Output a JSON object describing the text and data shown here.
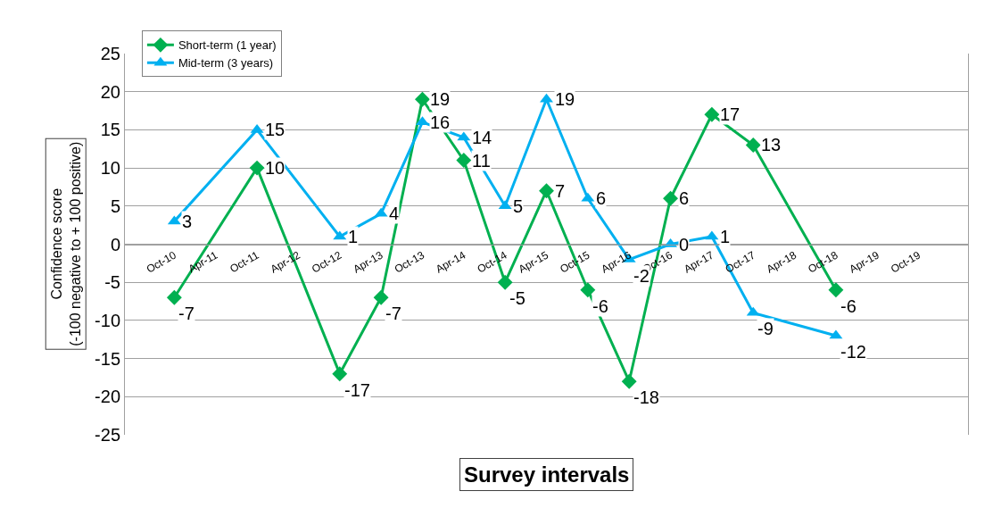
{
  "chart_data": {
    "type": "line",
    "categories": [
      "Oct-10",
      "Apr-11",
      "Oct-11",
      "Apr-12",
      "Oct-12",
      "Apr-13",
      "Oct-13",
      "Apr-14",
      "Oct-14",
      "Apr-15",
      "Oct-15",
      "Apr-16",
      "Oct-16",
      "Apr-17",
      "Oct-17",
      "Apr-18",
      "Oct-18",
      "Apr-19",
      "Oct-19"
    ],
    "series": [
      {
        "name": "Short-term (1 year)",
        "color": "#00b050",
        "marker": "diamond",
        "values": [
          -7,
          null,
          10,
          null,
          -17,
          -7,
          19,
          11,
          -5,
          7,
          -6,
          -18,
          6,
          17,
          13,
          null,
          -6,
          null,
          null
        ]
      },
      {
        "name": "Mid-term (3 years)",
        "color": "#00b0f0",
        "marker": "triangle",
        "values": [
          3,
          null,
          15,
          null,
          1,
          4,
          16,
          14,
          5,
          19,
          6,
          -2,
          0,
          1,
          -9,
          null,
          -12,
          null,
          null
        ]
      }
    ],
    "xlabel": "Survey intervals",
    "ylabel": "Confidence score\n(-100 negative to + 100 positive)",
    "ylim": [
      -25,
      25
    ],
    "yticks": [
      -25,
      -20,
      -15,
      -10,
      -5,
      0,
      5,
      10,
      15,
      20,
      25
    ],
    "grid": "y",
    "legend": "top left",
    "data_labels": true,
    "line_style": "solid"
  }
}
